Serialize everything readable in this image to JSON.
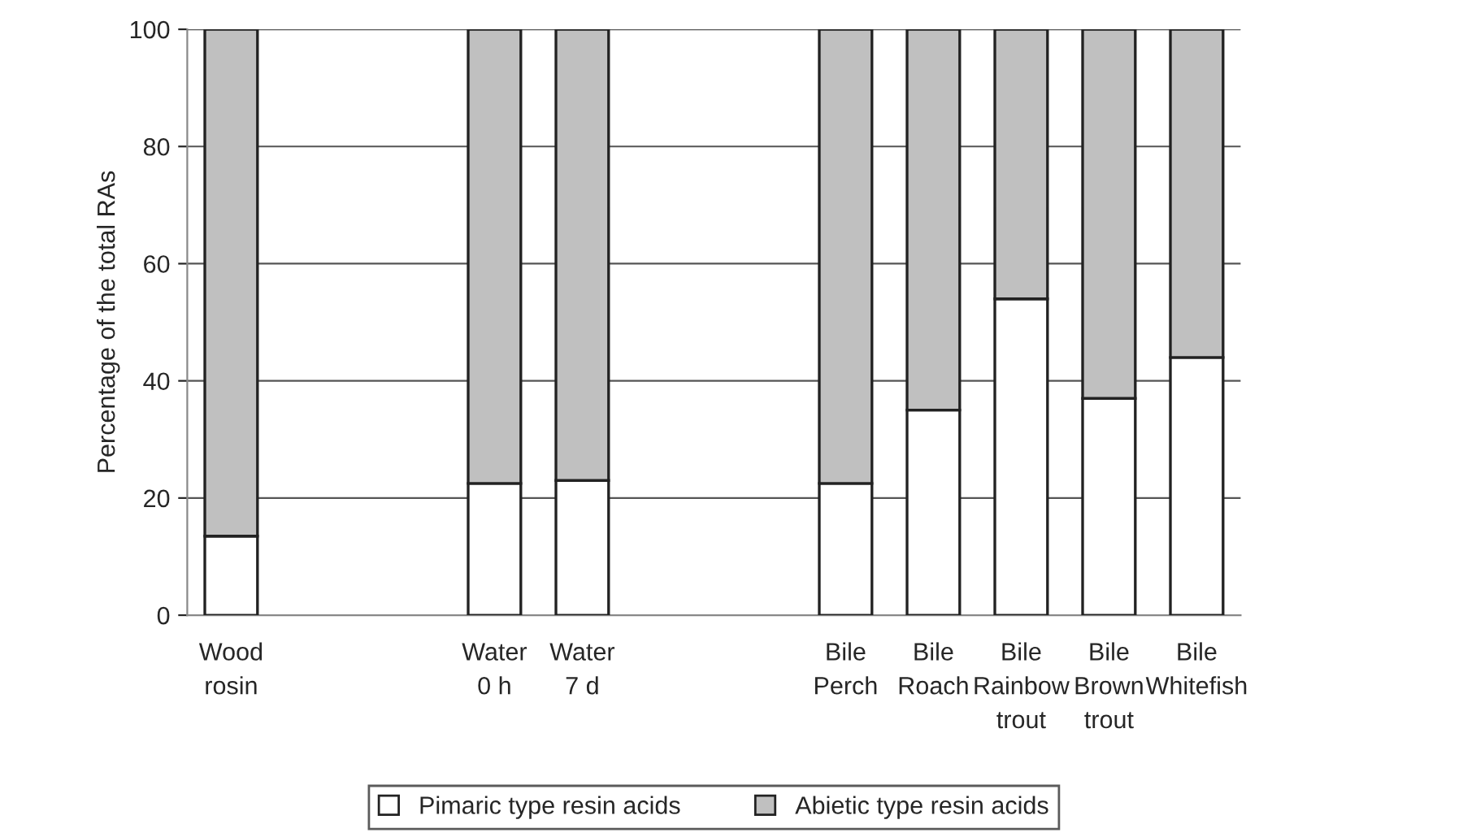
{
  "chart_data": {
    "type": "bar",
    "stacked": true,
    "ylabel": "Percentage of the total RAs",
    "categories": [
      "Wood\nrosin",
      null,
      null,
      "Water\n0 h",
      "Water\n7 d",
      null,
      null,
      "Bile\nPerch",
      "Bile\nRoach",
      "Bile\nRainbow\ntrout",
      "Bile\nBrown\ntrout",
      "Bile\nWhitefish"
    ],
    "series": [
      {
        "name": "Pimaric type resin acids",
        "color": "#ffffff",
        "values": [
          13.5,
          null,
          null,
          22.5,
          23,
          null,
          null,
          22.5,
          35,
          54,
          37,
          44
        ]
      },
      {
        "name": "Abietic type resin acids",
        "color": "#c0c0c0",
        "values": [
          86.5,
          null,
          null,
          77.5,
          77,
          null,
          null,
          77.5,
          65,
          46,
          63,
          56
        ]
      }
    ],
    "ylim": [
      0,
      100
    ],
    "yticks": [
      0,
      20,
      40,
      60,
      80,
      100
    ],
    "grid": "y",
    "legend": "bottom"
  }
}
